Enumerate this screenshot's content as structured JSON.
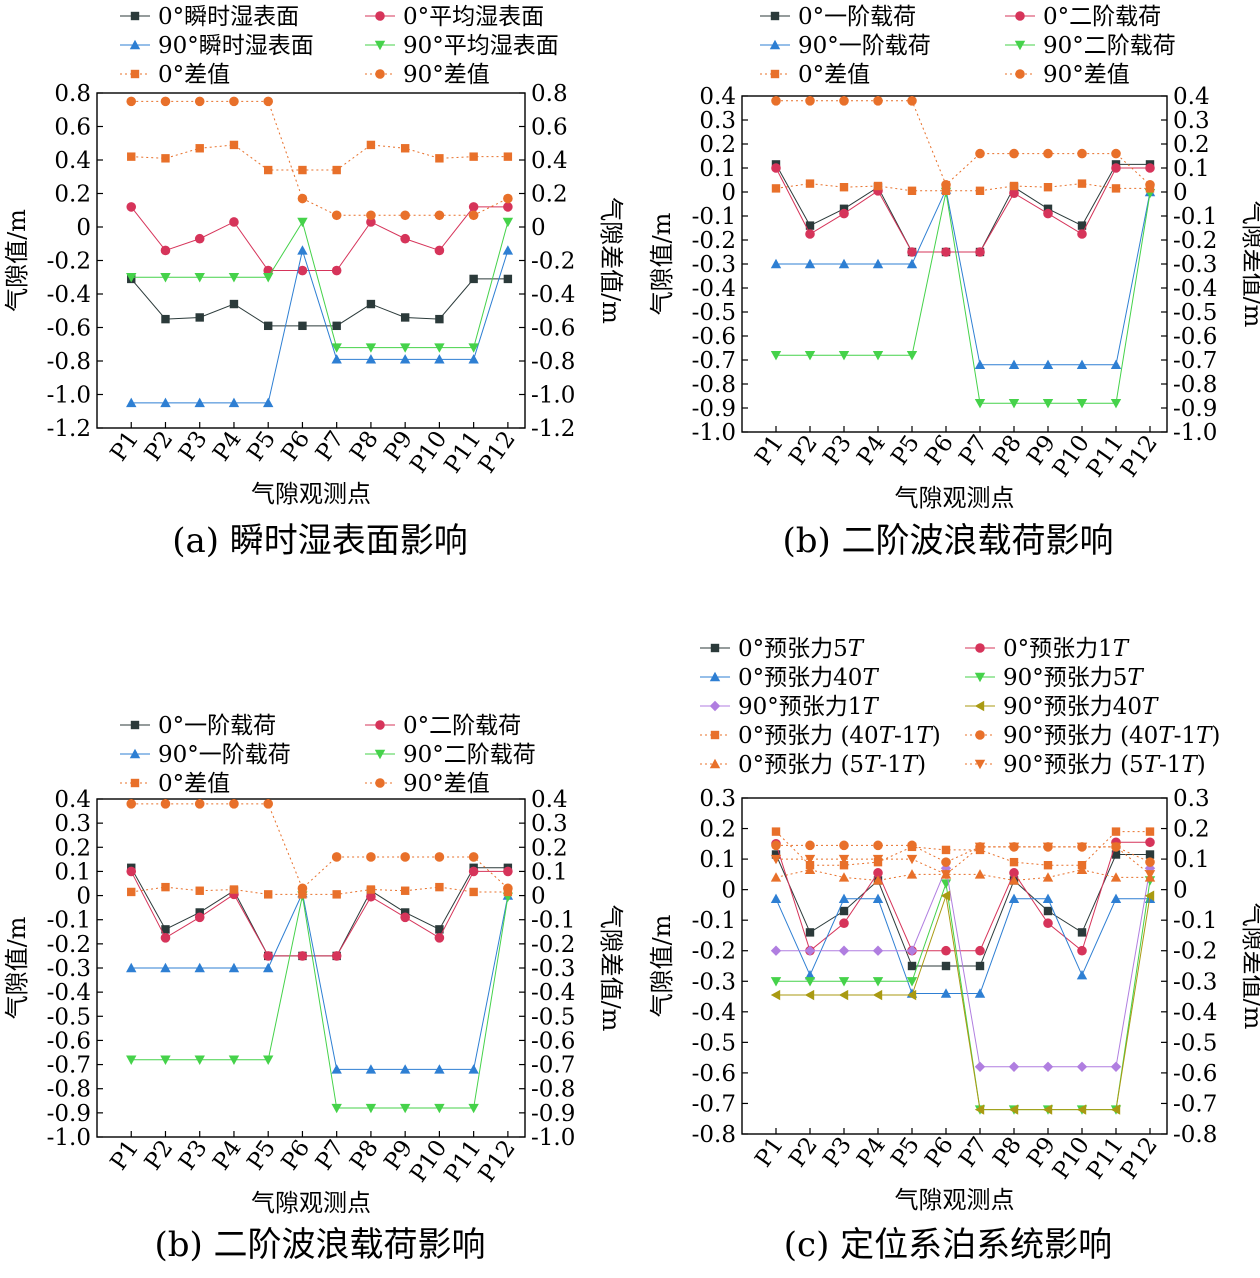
{
  "x_axis_label": "气隙观测点",
  "y_left_label": "气隙值/m",
  "y_right_label": "气隙差值/m",
  "points": [
    "P1",
    "P2",
    "P3",
    "P4",
    "P5",
    "P6",
    "P7",
    "P8",
    "P9",
    "P10",
    "P11",
    "P12"
  ],
  "chart_data": [
    {
      "type": "line",
      "caption": "(a) 瞬时湿表面影响",
      "xlabel": "气隙观测点",
      "ylabel": "气隙值/m",
      "y2label": "气隙差值/m",
      "ylim": [
        -1.2,
        0.8
      ],
      "ystep": 0.2,
      "ytick_decimals": 1,
      "minus_one_tick": "-1.0",
      "legend_cols": 2,
      "series": [
        {
          "name": "0°瞬时湿表面",
          "color": "#2b3a3a",
          "marker": "square",
          "dash": false,
          "axis": "left",
          "values": [
            -0.31,
            -0.55,
            -0.54,
            -0.46,
            -0.59,
            -0.59,
            -0.59,
            -0.46,
            -0.54,
            -0.55,
            -0.31,
            -0.31
          ]
        },
        {
          "name": "0°平均湿表面",
          "color": "#d6345a",
          "marker": "circle",
          "dash": false,
          "axis": "left",
          "values": [
            0.12,
            -0.14,
            -0.07,
            0.03,
            -0.26,
            -0.26,
            -0.26,
            0.03,
            -0.07,
            -0.14,
            0.12,
            0.12
          ]
        },
        {
          "name": "90°瞬时湿表面",
          "color": "#2e7fd3",
          "marker": "triangle-up",
          "dash": false,
          "axis": "left",
          "values": [
            -1.05,
            -1.05,
            -1.05,
            -1.05,
            -1.05,
            -0.14,
            -0.79,
            -0.79,
            -0.79,
            -0.79,
            -0.79,
            -0.14
          ]
        },
        {
          "name": "90°平均湿表面",
          "color": "#45d24a",
          "marker": "triangle-down",
          "dash": false,
          "axis": "left",
          "values": [
            -0.3,
            -0.3,
            -0.3,
            -0.3,
            -0.3,
            0.03,
            -0.72,
            -0.72,
            -0.72,
            -0.72,
            -0.72,
            0.03
          ]
        },
        {
          "name": "0°差值",
          "color": "#e8702a",
          "marker": "square",
          "dash": true,
          "axis": "right",
          "values": [
            0.42,
            0.41,
            0.47,
            0.49,
            0.34,
            0.34,
            0.34,
            0.49,
            0.47,
            0.41,
            0.42,
            0.42
          ]
        },
        {
          "name": "90°差值",
          "color": "#e8702a",
          "marker": "circle",
          "dash": true,
          "axis": "right",
          "values": [
            0.75,
            0.75,
            0.75,
            0.75,
            0.75,
            0.17,
            0.07,
            0.07,
            0.07,
            0.07,
            0.07,
            0.17
          ]
        }
      ]
    },
    {
      "type": "line",
      "caption": "(b) 二阶波浪载荷影响",
      "xlabel": "气隙观测点",
      "ylabel": "气隙值/m",
      "y2label": "气隙差值/m",
      "ylim": [
        -1.0,
        0.4
      ],
      "ystep": 0.1,
      "ytick_decimals": 1,
      "minus_one_tick": "-1.0",
      "legend_cols": 2,
      "series": [
        {
          "name": "0°一阶载荷",
          "color": "#2b3a3a",
          "marker": "square",
          "dash": false,
          "axis": "left",
          "values": [
            0.115,
            -0.14,
            -0.07,
            0.02,
            -0.25,
            -0.25,
            -0.25,
            0.02,
            -0.07,
            -0.14,
            0.115,
            0.115
          ]
        },
        {
          "name": "0°二阶载荷",
          "color": "#d6345a",
          "marker": "circle",
          "dash": false,
          "axis": "left",
          "values": [
            0.1,
            -0.175,
            -0.09,
            0.005,
            -0.25,
            -0.25,
            -0.25,
            -0.005,
            -0.09,
            -0.175,
            0.1,
            0.1
          ]
        },
        {
          "name": "90°一阶载荷",
          "color": "#2e7fd3",
          "marker": "triangle-up",
          "dash": false,
          "axis": "left",
          "values": [
            -0.3,
            -0.3,
            -0.3,
            -0.3,
            -0.3,
            0.01,
            -0.72,
            -0.72,
            -0.72,
            -0.72,
            -0.72,
            0.0
          ]
        },
        {
          "name": "90°二阶载荷",
          "color": "#45d24a",
          "marker": "triangle-down",
          "dash": false,
          "axis": "left",
          "values": [
            -0.68,
            -0.68,
            -0.68,
            -0.68,
            -0.68,
            0.0,
            -0.88,
            -0.88,
            -0.88,
            -0.88,
            -0.88,
            -0.005
          ]
        },
        {
          "name": "0°差值",
          "color": "#e8702a",
          "marker": "square",
          "dash": true,
          "axis": "right",
          "values": [
            0.015,
            0.035,
            0.02,
            0.025,
            0.005,
            0.005,
            0.005,
            0.025,
            0.02,
            0.035,
            0.015,
            0.015
          ]
        },
        {
          "name": "90°差值",
          "color": "#e8702a",
          "marker": "circle",
          "dash": true,
          "axis": "right",
          "values": [
            0.38,
            0.38,
            0.38,
            0.38,
            0.38,
            0.03,
            0.16,
            0.16,
            0.16,
            0.16,
            0.16,
            0.03
          ]
        }
      ]
    },
    {
      "type": "line",
      "caption": "(b) 二阶波浪载荷影响",
      "xlabel": "气隙观测点",
      "ylabel": "气隙值/m",
      "y2label": "气隙差值/m",
      "ylim": [
        -1.0,
        0.4
      ],
      "ystep": 0.1,
      "ytick_decimals": 1,
      "minus_one_tick": "-1.0",
      "legend_cols": 2,
      "series": [
        {
          "name": "0°一阶载荷",
          "color": "#2b3a3a",
          "marker": "square",
          "dash": false,
          "axis": "left",
          "values": [
            0.115,
            -0.14,
            -0.07,
            0.02,
            -0.25,
            -0.25,
            -0.25,
            0.02,
            -0.07,
            -0.14,
            0.115,
            0.115
          ]
        },
        {
          "name": "0°二阶载荷",
          "color": "#d6345a",
          "marker": "circle",
          "dash": false,
          "axis": "left",
          "values": [
            0.1,
            -0.175,
            -0.09,
            0.005,
            -0.25,
            -0.25,
            -0.25,
            -0.005,
            -0.09,
            -0.175,
            0.1,
            0.1
          ]
        },
        {
          "name": "90°一阶载荷",
          "color": "#2e7fd3",
          "marker": "triangle-up",
          "dash": false,
          "axis": "left",
          "values": [
            -0.3,
            -0.3,
            -0.3,
            -0.3,
            -0.3,
            0.01,
            -0.72,
            -0.72,
            -0.72,
            -0.72,
            -0.72,
            0.0
          ]
        },
        {
          "name": "90°二阶载荷",
          "color": "#45d24a",
          "marker": "triangle-down",
          "dash": false,
          "axis": "left",
          "values": [
            -0.68,
            -0.68,
            -0.68,
            -0.68,
            -0.68,
            0.0,
            -0.88,
            -0.88,
            -0.88,
            -0.88,
            -0.88,
            -0.005
          ]
        },
        {
          "name": "0°差值",
          "color": "#e8702a",
          "marker": "square",
          "dash": true,
          "axis": "right",
          "values": [
            0.015,
            0.035,
            0.02,
            0.025,
            0.005,
            0.005,
            0.005,
            0.025,
            0.02,
            0.035,
            0.015,
            0.015
          ]
        },
        {
          "name": "90°差值",
          "color": "#e8702a",
          "marker": "circle",
          "dash": true,
          "axis": "right",
          "values": [
            0.38,
            0.38,
            0.38,
            0.38,
            0.38,
            0.03,
            0.16,
            0.16,
            0.16,
            0.16,
            0.16,
            0.03
          ]
        }
      ]
    },
    {
      "type": "line",
      "caption": "(c) 定位系泊系统影响",
      "xlabel": "气隙观测点",
      "ylabel": "气隙值/m",
      "y2label": "气隙差值/m",
      "ylim": [
        -0.8,
        0.3
      ],
      "ystep": 0.1,
      "ytick_decimals": 1,
      "minus_one_tick": "-1.0",
      "legend_cols": 2,
      "series": [
        {
          "name": "0°预张力5",
          "italic": "T",
          "color": "#2b3a3a",
          "marker": "square",
          "dash": false,
          "axis": "left",
          "values": [
            0.115,
            -0.14,
            -0.07,
            0.03,
            -0.25,
            -0.25,
            -0.25,
            0.03,
            -0.07,
            -0.14,
            0.115,
            0.115
          ]
        },
        {
          "name": "0°预张力1",
          "italic": "T",
          "color": "#d6345a",
          "marker": "circle",
          "dash": false,
          "axis": "left",
          "values": [
            0.15,
            -0.2,
            -0.11,
            0.055,
            -0.2,
            -0.2,
            -0.2,
            0.055,
            -0.11,
            -0.2,
            0.155,
            0.155
          ]
        },
        {
          "name": "0°预张力40",
          "italic": "T",
          "color": "#2e7fd3",
          "marker": "triangle-up",
          "dash": false,
          "axis": "left",
          "values": [
            -0.03,
            -0.28,
            -0.03,
            -0.03,
            -0.34,
            -0.34,
            -0.34,
            -0.03,
            -0.03,
            -0.28,
            -0.03,
            -0.03
          ]
        },
        {
          "name": "90°预张力5",
          "italic": "T",
          "color": "#45d24a",
          "marker": "triangle-down",
          "dash": false,
          "axis": "left",
          "values": [
            -0.3,
            -0.3,
            -0.3,
            -0.3,
            -0.3,
            0.02,
            -0.72,
            -0.72,
            -0.72,
            -0.72,
            -0.72,
            0.03
          ]
        },
        {
          "name": "90°预张力1",
          "italic": "T",
          "color": "#b07ee0",
          "marker": "diamond",
          "dash": false,
          "axis": "left",
          "values": [
            -0.2,
            -0.2,
            -0.2,
            -0.2,
            -0.2,
            0.07,
            -0.58,
            -0.58,
            -0.58,
            -0.58,
            -0.58,
            0.07
          ]
        },
        {
          "name": "90°预张力40",
          "italic": "T",
          "color": "#a99a12",
          "marker": "triangle-left",
          "dash": false,
          "axis": "left",
          "values": [
            -0.345,
            -0.345,
            -0.345,
            -0.345,
            -0.345,
            -0.02,
            -0.72,
            -0.72,
            -0.72,
            -0.72,
            -0.72,
            -0.02
          ]
        },
        {
          "name": "0°预张力 (40",
          "suffix": "-1",
          "italic": "T",
          "color": "#e8702a",
          "marker": "square",
          "dash": true,
          "axis": "right",
          "values": [
            0.19,
            0.08,
            0.08,
            0.09,
            0.14,
            0.13,
            0.13,
            0.09,
            0.08,
            0.08,
            0.19,
            0.19
          ]
        },
        {
          "name": "90°预张力 (40",
          "suffix": "-1",
          "italic": "T",
          "color": "#e8702a",
          "marker": "circle",
          "dash": true,
          "axis": "right",
          "values": [
            0.145,
            0.145,
            0.145,
            0.145,
            0.145,
            0.09,
            0.14,
            0.14,
            0.14,
            0.14,
            0.14,
            0.09
          ]
        },
        {
          "name": "0°预张力 (5",
          "suffix": "-1",
          "italic": "T",
          "color": "#e8702a",
          "marker": "triangle-up",
          "dash": true,
          "axis": "right",
          "values": [
            0.04,
            0.065,
            0.04,
            0.03,
            0.05,
            0.05,
            0.05,
            0.03,
            0.04,
            0.065,
            0.04,
            0.04
          ]
        },
        {
          "name": "90°预张力 (5",
          "suffix": "-1",
          "italic": "T",
          "color": "#e8702a",
          "marker": "triangle-down",
          "dash": true,
          "axis": "right",
          "values": [
            0.1,
            0.1,
            0.1,
            0.1,
            0.1,
            0.05,
            0.14,
            0.14,
            0.14,
            0.14,
            0.14,
            0.05
          ]
        }
      ]
    }
  ]
}
